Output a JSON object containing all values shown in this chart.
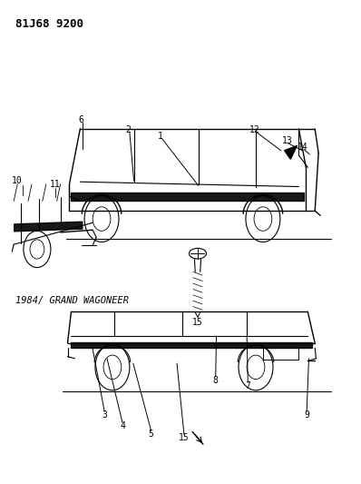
{
  "title_top": "81J68 9200",
  "subtitle": "1984/ GRAND WAGONEER",
  "background_color": "#ffffff",
  "text_color": "#000000",
  "fig_width": 3.98,
  "fig_height": 5.33,
  "dpi": 100
}
